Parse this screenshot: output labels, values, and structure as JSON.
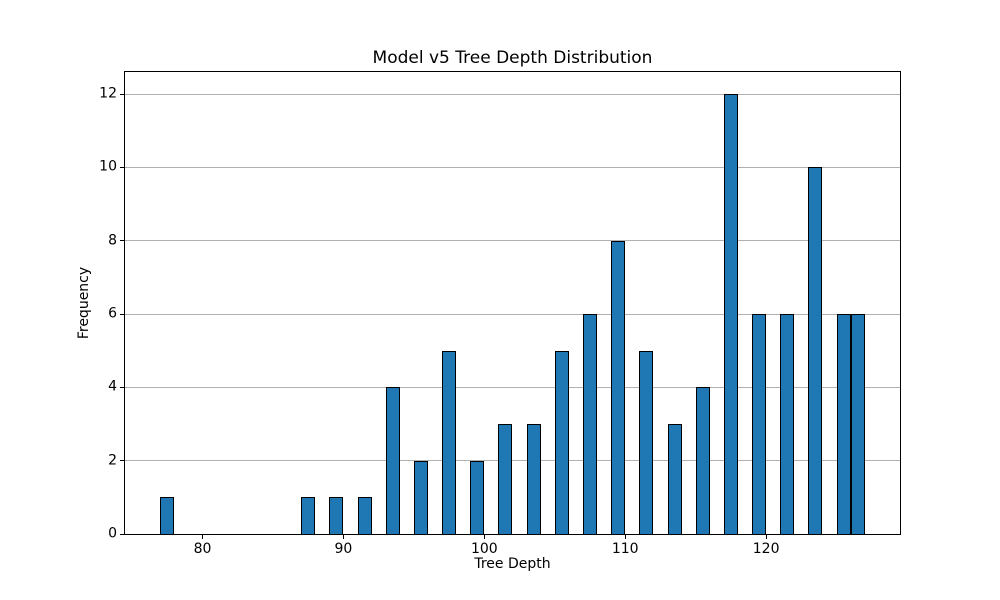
{
  "chart_data": {
    "type": "bar",
    "subtype": "histogram",
    "title": "Model v5 Tree Depth Distribution",
    "xlabel": "Tree Depth",
    "ylabel": "Frequency",
    "bin_left_edges": [
      77,
      87,
      89,
      91,
      93,
      95,
      97,
      99,
      101,
      103,
      105,
      107,
      109,
      111,
      113,
      115,
      117,
      119,
      121,
      123,
      125,
      126
    ],
    "values": [
      1,
      1,
      1,
      1,
      4,
      2,
      5,
      2,
      3,
      3,
      5,
      6,
      8,
      5,
      3,
      4,
      12,
      6,
      6,
      10,
      6,
      6
    ],
    "bin_width": 1,
    "total_count": 100,
    "xlim": [
      74.5,
      129.5
    ],
    "ylim": [
      0,
      12.6
    ],
    "xticks": [
      80,
      90,
      100,
      110,
      120
    ],
    "yticks": [
      0,
      2,
      4,
      6,
      8,
      10,
      12
    ],
    "grid": "horizontal",
    "legend": false,
    "colors": {
      "bar_fill": "#1f77b4",
      "bar_edge": "#000000",
      "grid": "#b0b0b0",
      "spine": "#000000",
      "background": "#ffffff",
      "text": "#000000"
    }
  }
}
